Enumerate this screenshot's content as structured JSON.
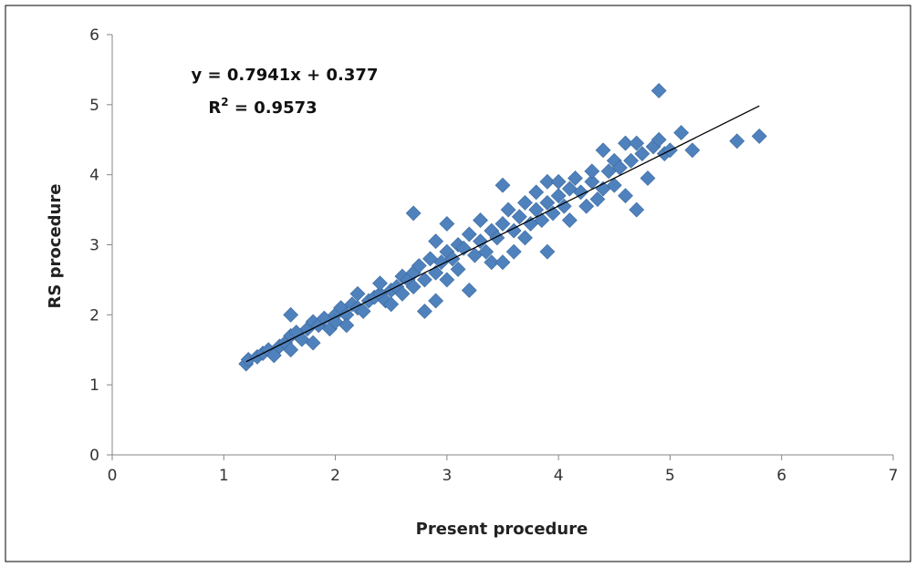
{
  "chart_data": {
    "type": "scatter",
    "xlabel": "Present procedure",
    "ylabel": "RS procedure",
    "xlim": [
      0,
      7
    ],
    "ylim": [
      0,
      6
    ],
    "xticks": [
      "0",
      "1",
      "2",
      "3",
      "4",
      "5",
      "6",
      "7"
    ],
    "yticks": [
      "0",
      "1",
      "2",
      "3",
      "4",
      "5",
      "6"
    ],
    "grid": false,
    "legend": "none",
    "marker": "diamond",
    "marker_color": "#4F81BD",
    "trendline": {
      "slope": 0.7941,
      "intercept": 0.377,
      "x_range": [
        1.2,
        5.8
      ],
      "color": "#000000",
      "equation_text": "y = 0.7941x + 0.377",
      "r2_prefix": "R",
      "r2_suffix": " = 0.9573"
    },
    "points": [
      [
        1.2,
        1.3
      ],
      [
        1.22,
        1.36
      ],
      [
        1.3,
        1.4
      ],
      [
        1.35,
        1.45
      ],
      [
        1.4,
        1.5
      ],
      [
        1.45,
        1.42
      ],
      [
        1.5,
        1.55
      ],
      [
        1.55,
        1.6
      ],
      [
        1.6,
        1.5
      ],
      [
        1.6,
        1.7
      ],
      [
        1.6,
        2.0
      ],
      [
        1.65,
        1.75
      ],
      [
        1.7,
        1.65
      ],
      [
        1.75,
        1.8
      ],
      [
        1.8,
        1.6
      ],
      [
        1.8,
        1.9
      ],
      [
        1.85,
        1.85
      ],
      [
        1.9,
        1.95
      ],
      [
        1.95,
        1.8
      ],
      [
        2.0,
        2.0
      ],
      [
        2.0,
        1.9
      ],
      [
        2.05,
        2.1
      ],
      [
        2.1,
        2.0
      ],
      [
        2.1,
        1.85
      ],
      [
        2.15,
        2.15
      ],
      [
        2.2,
        2.1
      ],
      [
        2.2,
        2.3
      ],
      [
        2.25,
        2.05
      ],
      [
        2.3,
        2.2
      ],
      [
        2.35,
        2.25
      ],
      [
        2.4,
        2.3
      ],
      [
        2.4,
        2.45
      ],
      [
        2.45,
        2.2
      ],
      [
        2.5,
        2.35
      ],
      [
        2.5,
        2.15
      ],
      [
        2.55,
        2.4
      ],
      [
        2.6,
        2.55
      ],
      [
        2.6,
        2.3
      ],
      [
        2.65,
        2.5
      ],
      [
        2.7,
        2.6
      ],
      [
        2.7,
        3.45
      ],
      [
        2.7,
        2.4
      ],
      [
        2.75,
        2.7
      ],
      [
        2.8,
        2.5
      ],
      [
        2.8,
        2.05
      ],
      [
        2.85,
        2.8
      ],
      [
        2.9,
        2.6
      ],
      [
        2.9,
        3.05
      ],
      [
        2.9,
        2.2
      ],
      [
        2.95,
        2.75
      ],
      [
        3.0,
        2.9
      ],
      [
        3.0,
        2.5
      ],
      [
        3.0,
        3.3
      ],
      [
        3.05,
        2.8
      ],
      [
        3.1,
        3.0
      ],
      [
        3.1,
        2.65
      ],
      [
        3.15,
        2.95
      ],
      [
        3.2,
        3.15
      ],
      [
        3.2,
        2.35
      ],
      [
        3.25,
        2.85
      ],
      [
        3.3,
        3.05
      ],
      [
        3.3,
        3.35
      ],
      [
        3.35,
        2.9
      ],
      [
        3.4,
        3.2
      ],
      [
        3.4,
        2.75
      ],
      [
        3.45,
        3.1
      ],
      [
        3.5,
        3.3
      ],
      [
        3.5,
        3.85
      ],
      [
        3.5,
        2.75
      ],
      [
        3.55,
        3.5
      ],
      [
        3.6,
        3.2
      ],
      [
        3.6,
        2.9
      ],
      [
        3.65,
        3.4
      ],
      [
        3.7,
        3.6
      ],
      [
        3.7,
        3.1
      ],
      [
        3.75,
        3.3
      ],
      [
        3.8,
        3.5
      ],
      [
        3.8,
        3.75
      ],
      [
        3.85,
        3.35
      ],
      [
        3.9,
        3.6
      ],
      [
        3.9,
        3.9
      ],
      [
        3.9,
        2.9
      ],
      [
        3.95,
        3.45
      ],
      [
        4.0,
        3.7
      ],
      [
        4.0,
        3.9
      ],
      [
        4.05,
        3.55
      ],
      [
        4.1,
        3.8
      ],
      [
        4.1,
        3.35
      ],
      [
        4.15,
        3.95
      ],
      [
        4.2,
        3.75
      ],
      [
        4.25,
        3.55
      ],
      [
        4.3,
        3.9
      ],
      [
        4.3,
        4.05
      ],
      [
        4.35,
        3.65
      ],
      [
        4.4,
        4.35
      ],
      [
        4.4,
        3.8
      ],
      [
        4.45,
        4.05
      ],
      [
        4.5,
        3.85
      ],
      [
        4.5,
        4.2
      ],
      [
        4.55,
        4.1
      ],
      [
        4.6,
        4.45
      ],
      [
        4.6,
        3.7
      ],
      [
        4.65,
        4.2
      ],
      [
        4.7,
        4.45
      ],
      [
        4.7,
        3.5
      ],
      [
        4.75,
        4.3
      ],
      [
        4.8,
        3.95
      ],
      [
        4.85,
        4.4
      ],
      [
        4.9,
        4.5
      ],
      [
        4.9,
        5.2
      ],
      [
        4.95,
        4.3
      ],
      [
        5.0,
        4.35
      ],
      [
        5.1,
        4.6
      ],
      [
        5.2,
        4.35
      ],
      [
        5.6,
        4.48
      ],
      [
        5.8,
        4.55
      ]
    ]
  }
}
